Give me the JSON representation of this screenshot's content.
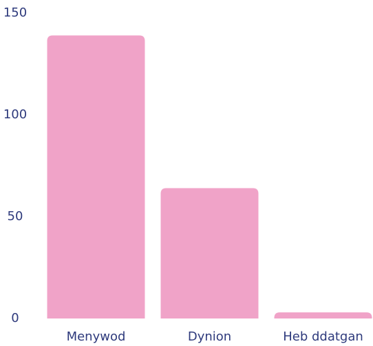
{
  "chart_data": {
    "type": "bar",
    "categories": [
      "Menywod",
      "Dynion",
      "Heb ddatgan"
    ],
    "values": [
      139,
      64,
      3
    ],
    "color": "#f0a3c8",
    "ylim": [
      0,
      150
    ],
    "yticks": [
      0,
      50,
      100,
      150
    ],
    "grid": false
  }
}
